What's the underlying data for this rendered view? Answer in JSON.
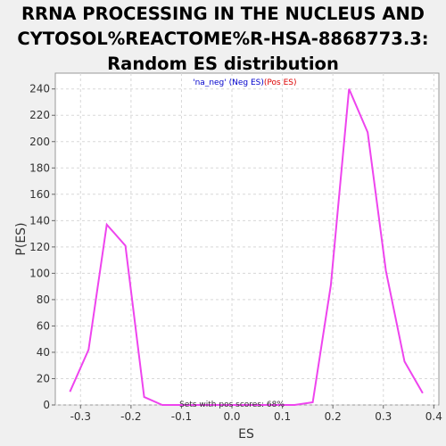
{
  "title_lines": [
    "RRNA PROCESSING IN THE NUCLEUS AND",
    "CYTOSOL%REACTOME%R-HSA-8868773.3:",
    "Random ES distribution"
  ],
  "legend": {
    "neg_label": "'na_neg' (Neg ES)",
    "pos_label": "(Pos ES)"
  },
  "annotation": "Sets with pos scores: 68%",
  "colors": {
    "line": "#ee44ee",
    "neg_legend": "#0000cc",
    "pos_legend": "#dd0000",
    "plot_bg": "#ffffff",
    "page_bg": "#f0f0f0",
    "grid": "#d8d8d8"
  },
  "chart_data": {
    "type": "line",
    "title": "RRNA PROCESSING IN THE NUCLEUS AND CYTOSOL%REACTOME%R-HSA-8868773.3: Random ES distribution",
    "xlabel": "ES",
    "ylabel": "P(ES)",
    "xlim": [
      -0.35,
      0.41
    ],
    "ylim": [
      0,
      252
    ],
    "grid": true,
    "xticks": [
      -0.3,
      -0.2,
      -0.1,
      0.0,
      0.1,
      0.2,
      0.3,
      0.4
    ],
    "xtick_labels": [
      "-0.3",
      "-0.2",
      "-0.1",
      "0.0",
      "0.1",
      "0.2",
      "0.3",
      "0.4"
    ],
    "yticks": [
      0,
      20,
      40,
      60,
      80,
      100,
      120,
      140,
      160,
      180,
      200,
      220,
      240
    ],
    "ytick_labels": [
      "0",
      "20",
      "40",
      "60",
      "80",
      "100",
      "120",
      "140",
      "160",
      "180",
      "200",
      "220",
      "240"
    ],
    "x": [
      -0.321,
      -0.284,
      -0.248,
      -0.211,
      -0.174,
      -0.138,
      0.124,
      0.16,
      0.196,
      0.232,
      0.269,
      0.305,
      0.342,
      0.378
    ],
    "y": [
      10,
      42,
      137,
      121,
      6,
      0,
      0,
      2,
      91,
      240,
      207,
      102,
      33,
      9
    ]
  }
}
